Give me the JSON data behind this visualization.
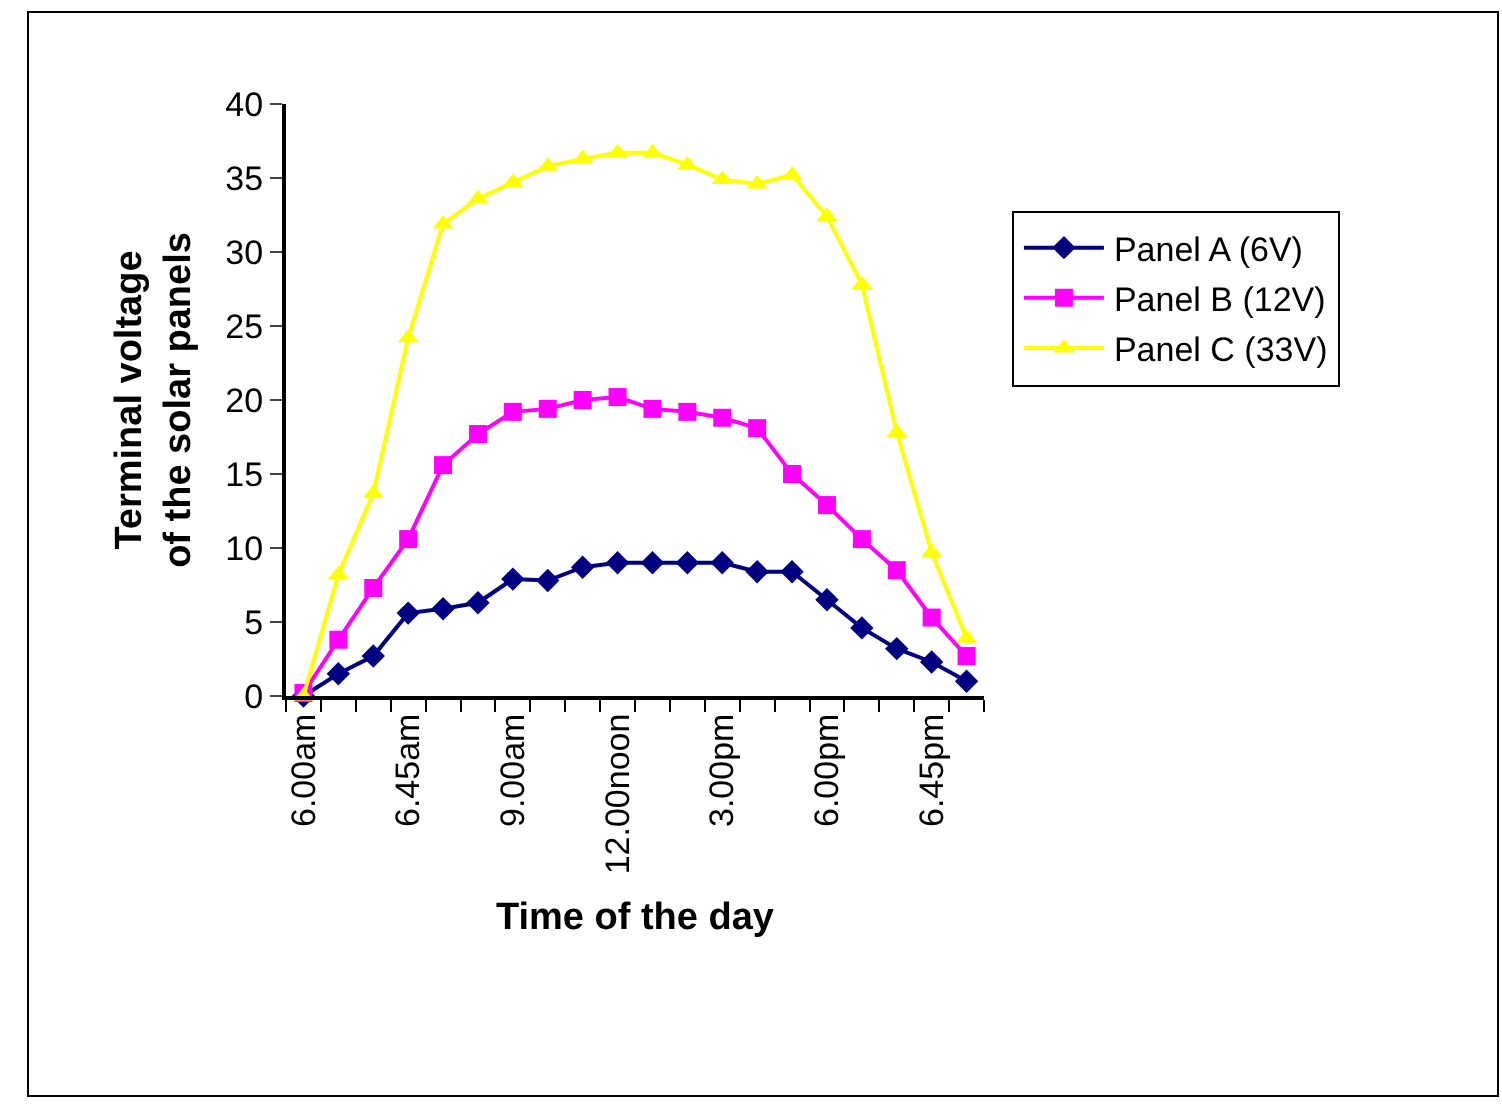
{
  "chart_data": {
    "type": "line",
    "xlabel": "Time of the day",
    "ylabel": "Terminal voltage of the solar panels",
    "categories": [
      "6.00am",
      null,
      null,
      "6.45am",
      null,
      null,
      "9.00am",
      null,
      null,
      "12.00noon",
      null,
      null,
      "3.00pm",
      null,
      null,
      "6.00pm",
      null,
      null,
      "6.45pm",
      null
    ],
    "ylim": [
      0,
      40
    ],
    "yticks": [
      0,
      5,
      10,
      15,
      20,
      25,
      30,
      35,
      40
    ],
    "legend": "right",
    "series": [
      {
        "name": "Panel A (6V)",
        "color": "#000080",
        "marker": "diamond",
        "values": [
          0,
          1.5,
          2.7,
          5.6,
          5.9,
          6.3,
          7.9,
          7.8,
          8.7,
          9.0,
          9.0,
          9.0,
          9.0,
          8.4,
          8.4,
          6.5,
          4.6,
          3.2,
          2.3,
          1.0
        ]
      },
      {
        "name": "Panel B (12V)",
        "color": "#ff00ff",
        "marker": "square",
        "values": [
          0.2,
          3.8,
          7.3,
          10.6,
          15.6,
          17.7,
          19.2,
          19.4,
          20.0,
          20.2,
          19.4,
          19.2,
          18.8,
          18.1,
          15.0,
          12.9,
          10.6,
          8.5,
          5.3,
          2.7
        ]
      },
      {
        "name": "Panel C (33V)",
        "color": "#ffff00",
        "marker": "triangle",
        "values": [
          0,
          8.2,
          13.7,
          24.2,
          31.9,
          33.6,
          34.7,
          35.8,
          36.3,
          36.7,
          36.7,
          35.9,
          34.9,
          34.6,
          35.2,
          32.4,
          27.8,
          17.8,
          9.7,
          3.9
        ]
      }
    ]
  }
}
